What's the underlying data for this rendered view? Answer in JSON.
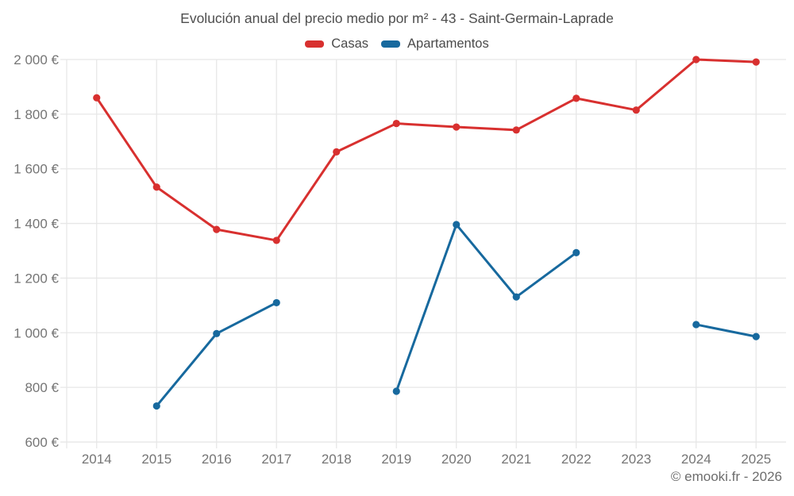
{
  "footer": {
    "copyright": "© emooki.fr - 2026"
  },
  "chart_data": {
    "type": "line",
    "title": "Evolución anual del precio medio por m² - 43 - Saint-Germain-Laprade",
    "categories": [
      "2014",
      "2015",
      "2016",
      "2017",
      "2018",
      "2019",
      "2020",
      "2021",
      "2022",
      "2023",
      "2024",
      "2025"
    ],
    "series": [
      {
        "name": "Casas",
        "color": "#d8302f",
        "values": [
          1860,
          1533,
          1378,
          1338,
          1662,
          1766,
          1753,
          1742,
          1858,
          1815,
          2000,
          1991
        ]
      },
      {
        "name": "Apartamentos",
        "color": "#17699e",
        "values": [
          null,
          732,
          997,
          1110,
          null,
          786,
          1396,
          1131,
          1293,
          null,
          1030,
          986
        ]
      }
    ],
    "ylim": [
      600,
      2000
    ],
    "ytick_step": 200,
    "ytick_labels": [
      "600 €",
      "800 €",
      "1 000 €",
      "1 200 €",
      "1 400 €",
      "1 600 €",
      "1 800 €",
      "2 000 €"
    ],
    "ylabel": "",
    "xlabel": "",
    "grid": true,
    "legend_position": "top",
    "axis_text_color": "#757575",
    "grid_color": "#e7e7e7"
  }
}
